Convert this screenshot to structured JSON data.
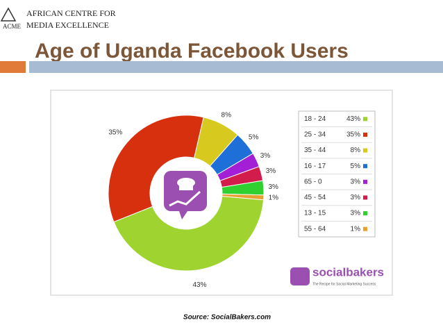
{
  "header": {
    "logo_mark": "ACME",
    "logo_line1": "AFRICAN CENTRE FOR",
    "logo_line2": "MEDIA EXCELLENCE"
  },
  "chart_data": {
    "type": "pie",
    "title": "Age of Uganda Facebook Users",
    "categories": [
      "18 - 24",
      "25 - 34",
      "35 - 44",
      "16 - 17",
      "65 - 0",
      "45 - 54",
      "13 - 15",
      "55 - 64"
    ],
    "values": [
      43,
      35,
      8,
      5,
      3,
      3,
      3,
      1
    ],
    "value_labels": [
      "43%",
      "35%",
      "8%",
      "5%",
      "3%",
      "3%",
      "3%",
      "1%"
    ],
    "colors": [
      "#9fd330",
      "#d6300f",
      "#d8c91e",
      "#1e6fd8",
      "#a21fd6",
      "#d21c4c",
      "#2fd02f",
      "#e8a033"
    ],
    "brand": "socialbakers",
    "brand_tagline": "The Recipe for Social Marketing Success",
    "source": "Source: SocialBakers.com"
  }
}
